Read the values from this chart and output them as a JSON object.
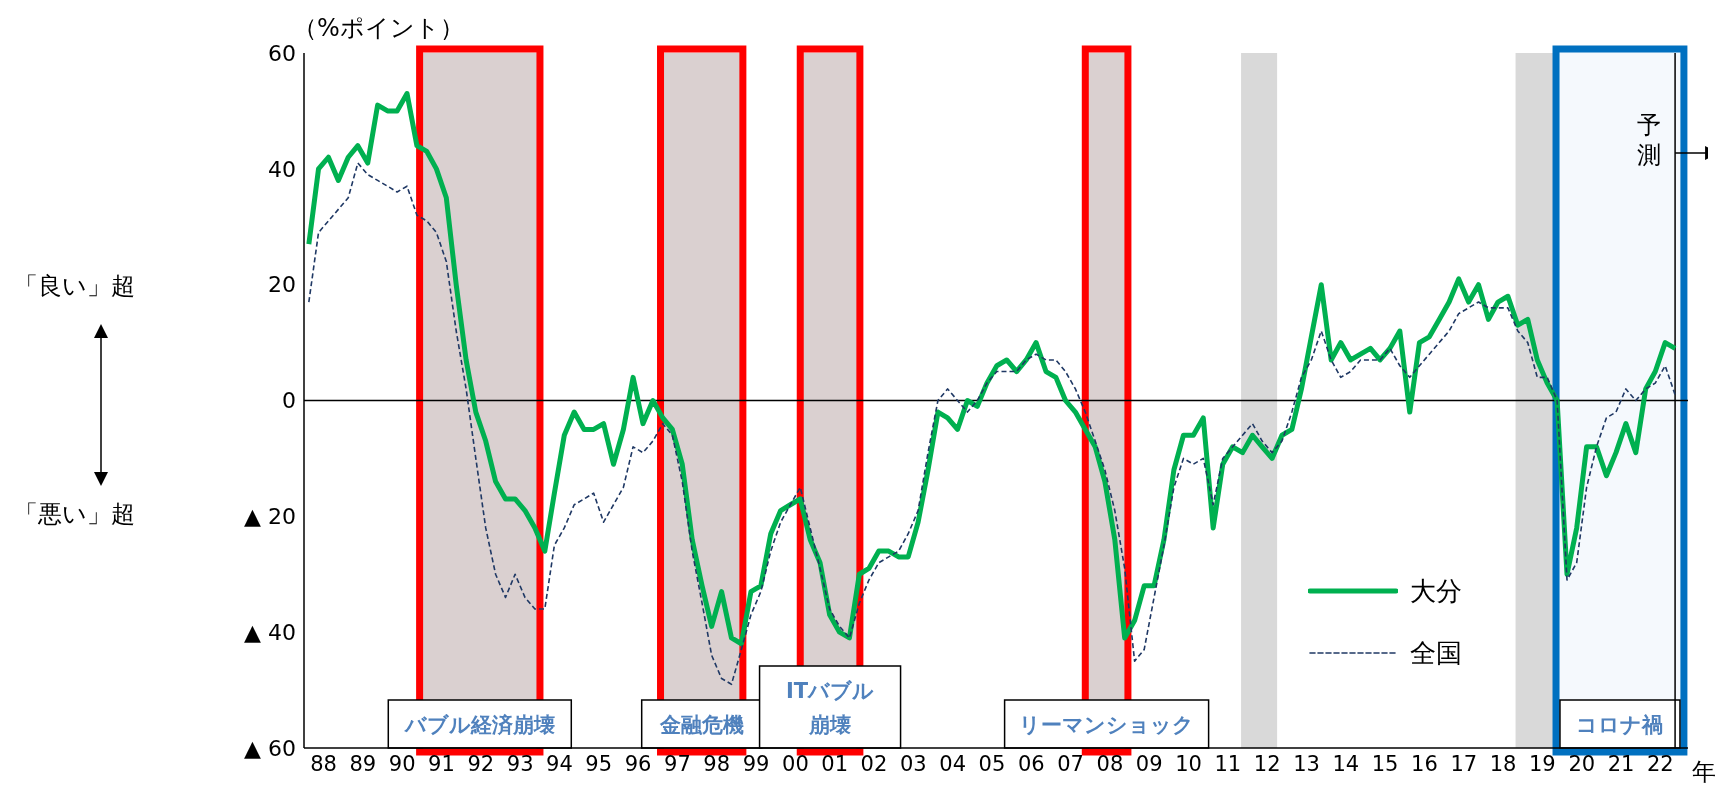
{
  "chart_data": {
    "type": "line",
    "ylabel": "（%ポイント）",
    "xlabel": "年",
    "annotations": [
      "「良い」超",
      "「悪い」超"
    ],
    "x": [
      "1988-02-15",
      "1988-05-15",
      "1988-08-15",
      "1988-11-15",
      "1989-02-15",
      "1989-05-15",
      "1989-08-15",
      "1989-11-15",
      "1990-02-15",
      "1990-05-15",
      "1990-08-15",
      "1990-11-15",
      "1991-02-15",
      "1991-05-15",
      "1991-08-15",
      "1991-11-15",
      "1992-02-15",
      "1992-05-15",
      "1992-08-15",
      "1992-11-15",
      "1993-02-15",
      "1993-05-15",
      "1993-08-15",
      "1993-11-15",
      "1994-02-15",
      "1994-05-15",
      "1994-08-15",
      "1994-11-15",
      "1995-02-15",
      "1995-05-15",
      "1995-08-15",
      "1995-11-15",
      "1996-02-15",
      "1996-05-15",
      "1996-08-15",
      "1996-11-15",
      "1997-02-15",
      "1997-05-15",
      "1997-08-15",
      "1997-11-15",
      "1998-02-15",
      "1998-05-15",
      "1998-08-15",
      "1998-11-15",
      "1999-02-15",
      "1999-05-15",
      "1999-08-15",
      "1999-11-15",
      "2000-02-15",
      "2000-05-15",
      "2000-08-15",
      "2000-11-15",
      "2001-02-15",
      "2001-05-15",
      "2001-08-15",
      "2001-11-15",
      "2002-02-15",
      "2002-05-15",
      "2002-08-15",
      "2002-11-15",
      "2003-02-15",
      "2003-05-15",
      "2003-08-15",
      "2003-11-15",
      "2004-02-15",
      "2004-05-15",
      "2004-08-15",
      "2004-11-15",
      "2005-02-15",
      "2005-05-15",
      "2005-08-15",
      "2005-11-15",
      "2006-02-15",
      "2006-05-15",
      "2006-08-15",
      "2006-11-15",
      "2007-02-15",
      "2007-05-15",
      "2007-08-15",
      "2007-11-15",
      "2008-02-15",
      "2008-05-15",
      "2008-08-15",
      "2008-11-15",
      "2009-02-15",
      "2009-05-15",
      "2009-08-15",
      "2009-11-15",
      "2010-02-15",
      "2010-05-15",
      "2010-08-15",
      "2010-11-15",
      "2011-02-15",
      "2011-05-15",
      "2011-08-15",
      "2011-11-15",
      "2012-02-15",
      "2012-05-15",
      "2012-08-15",
      "2012-11-15",
      "2013-02-15",
      "2013-05-15",
      "2013-08-15",
      "2013-11-15",
      "2014-02-15",
      "2014-05-15",
      "2014-08-15",
      "2014-11-15",
      "2015-02-15",
      "2015-05-15",
      "2015-08-15",
      "2015-11-15",
      "2016-02-15",
      "2016-05-15",
      "2016-08-15",
      "2016-11-15",
      "2017-02-15",
      "2017-05-15",
      "2017-08-15",
      "2017-11-15",
      "2018-02-15",
      "2018-05-15",
      "2018-08-15",
      "2018-11-15",
      "2019-02-15",
      "2019-05-15",
      "2019-08-15",
      "2019-11-15",
      "2020-02-15",
      "2020-05-15",
      "2020-08-15",
      "2020-11-15",
      "2021-02-15",
      "2021-05-15",
      "2021-08-15",
      "2021-11-15",
      "2022-02-15",
      "2022-05-15",
      "2022-08-15",
      "2022-11-15"
    ],
    "series": [
      {
        "name": "大分",
        "color": "#00b050",
        "line_style": "solid",
        "values": [
          27,
          40,
          42,
          38,
          42,
          44,
          41,
          51,
          50,
          50,
          53,
          44,
          43,
          40,
          35,
          20,
          7,
          -2,
          -7,
          -14,
          -17,
          -17,
          -19,
          -22,
          -26,
          -16,
          -6,
          -2,
          -5,
          -5,
          -4,
          -11,
          -5,
          4,
          -4,
          0,
          -3,
          -5,
          -11,
          -24,
          -32,
          -39,
          -33,
          -41,
          -42,
          -33,
          -32,
          -23,
          -19,
          -18,
          -17,
          -24,
          -28,
          -37,
          -40,
          -41,
          -30,
          -29,
          -26,
          -26,
          -27,
          -27,
          -21,
          -12,
          -2,
          -3,
          -5,
          0,
          -1,
          3,
          6,
          7,
          5,
          7,
          10,
          5,
          4,
          0,
          -2,
          -5,
          -8,
          -14,
          -24,
          -41,
          -38,
          -32,
          -32,
          -24,
          -12,
          -6,
          -6,
          -3,
          -22,
          -11,
          -8,
          -9,
          -6,
          -8,
          -10,
          -6,
          -5,
          2,
          11,
          20,
          7,
          10,
          7,
          8,
          9,
          7,
          9,
          12,
          -2,
          10,
          11,
          14,
          17,
          21,
          17,
          20,
          14,
          17,
          18,
          13,
          14,
          7,
          3,
          0,
          -30,
          -22,
          -8,
          -8,
          -13,
          -9,
          -4,
          -9,
          2,
          5,
          10,
          9
        ]
      },
      {
        "name": "全国",
        "color": "#1f3864",
        "line_style": "dashed",
        "values": [
          17,
          29,
          31,
          33,
          35,
          41,
          39,
          38,
          37,
          36,
          37,
          32,
          31,
          29,
          24,
          12,
          2,
          -10,
          -22,
          -30,
          -34,
          -30,
          -34,
          -36,
          -36,
          -25,
          -22,
          -18,
          -17,
          -16,
          -21,
          -18,
          -15,
          -8,
          -9,
          -7,
          -4,
          -6,
          -14,
          -26,
          -35,
          -44,
          -48,
          -49,
          -43,
          -37,
          -33,
          -26,
          -21,
          -18,
          -15,
          -22,
          -29,
          -36,
          -39,
          -41,
          -35,
          -31,
          -28,
          -27,
          -26,
          -23,
          -19,
          -9,
          0,
          2,
          0,
          -2,
          0,
          3,
          5,
          5,
          5,
          7,
          8,
          7,
          7,
          5,
          2,
          -2,
          -7,
          -12,
          -19,
          -29,
          -45,
          -43,
          -34,
          -25,
          -15,
          -10,
          -11,
          -10,
          -18,
          -10,
          -8,
          -6,
          -4,
          -7,
          -9,
          -7,
          -2,
          4,
          7,
          12,
          7,
          4,
          5,
          7,
          7,
          7,
          9,
          6,
          4,
          6,
          8,
          10,
          12,
          15,
          16,
          17,
          16,
          16,
          16,
          12,
          10,
          4,
          4,
          0,
          -31,
          -28,
          -15,
          -8,
          -3,
          -2,
          2,
          0,
          2,
          3,
          6,
          1
        ]
      }
    ],
    "xlim": [
      "1988-01-01",
      "2023-03-15"
    ],
    "xticks": [
      {
        "value": "1988-07-01",
        "label": "88"
      },
      {
        "value": "1989-07-01",
        "label": "89"
      },
      {
        "value": "1990-07-01",
        "label": "90"
      },
      {
        "value": "1991-07-01",
        "label": "91"
      },
      {
        "value": "1992-07-01",
        "label": "92"
      },
      {
        "value": "1993-07-01",
        "label": "93"
      },
      {
        "value": "1994-07-01",
        "label": "94"
      },
      {
        "value": "1995-07-01",
        "label": "95"
      },
      {
        "value": "1996-07-01",
        "label": "96"
      },
      {
        "value": "1997-07-01",
        "label": "97"
      },
      {
        "value": "1998-07-01",
        "label": "98"
      },
      {
        "value": "1999-07-01",
        "label": "99"
      },
      {
        "value": "2000-07-01",
        "label": "00"
      },
      {
        "value": "2001-07-01",
        "label": "01"
      },
      {
        "value": "2002-07-01",
        "label": "02"
      },
      {
        "value": "2003-07-01",
        "label": "03"
      },
      {
        "value": "2004-07-01",
        "label": "04"
      },
      {
        "value": "2005-07-01",
        "label": "05"
      },
      {
        "value": "2006-07-01",
        "label": "06"
      },
      {
        "value": "2007-07-01",
        "label": "07"
      },
      {
        "value": "2008-07-01",
        "label": "08"
      },
      {
        "value": "2009-07-01",
        "label": "09"
      },
      {
        "value": "2010-07-01",
        "label": "10"
      },
      {
        "value": "2011-07-01",
        "label": "11"
      },
      {
        "value": "2012-07-01",
        "label": "12"
      },
      {
        "value": "2013-07-01",
        "label": "13"
      },
      {
        "value": "2014-07-01",
        "label": "14"
      },
      {
        "value": "2015-07-01",
        "label": "15"
      },
      {
        "value": "2016-07-01",
        "label": "16"
      },
      {
        "value": "2017-07-01",
        "label": "17"
      },
      {
        "value": "2018-07-01",
        "label": "18"
      },
      {
        "value": "2019-07-01",
        "label": "19"
      },
      {
        "value": "2020-07-01",
        "label": "20"
      },
      {
        "value": "2021-07-01",
        "label": "21"
      },
      {
        "value": "2022-07-01",
        "label": "22"
      }
    ],
    "ylim": [
      -60,
      60
    ],
    "yticks": [
      60,
      40,
      20,
      0,
      {
        "value": -20,
        "label": "▲ 20"
      },
      {
        "value": -40,
        "label": "▲ 40"
      },
      {
        "value": -60,
        "label": "▲ 60"
      }
    ],
    "ref_lines": [
      {
        "axis": "y",
        "value": 0,
        "color": "#000000"
      },
      {
        "axis": "x",
        "value": "2022-11-15",
        "label": "予測",
        "color": "#000000"
      }
    ],
    "bands": [
      {
        "axis": "x",
        "from": "1990-12-10",
        "to": "1994-01-01",
        "color": "#d9d9d9"
      },
      {
        "axis": "x",
        "from": "1997-01-25",
        "to": "1999-03-01",
        "color": "#d9d9d9"
      },
      {
        "axis": "x",
        "from": "2000-08-15",
        "to": "2002-02-20",
        "color": "#d9d9d9"
      },
      {
        "axis": "x",
        "from": "2007-11-15",
        "to": "2008-12-15",
        "color": "#d9d9d9"
      },
      {
        "axis": "x",
        "from": "2011-11-01",
        "to": "2012-10-01",
        "color": "#d9d9d9"
      },
      {
        "axis": "x",
        "from": "2018-10-25",
        "to": "2019-11-05",
        "color": "#d9d9d9"
      },
      {
        "axis": "x",
        "from": "1990-12-10",
        "to": "1994-01-01",
        "label": "バブル経済崩壊",
        "color": "#ff0000"
      },
      {
        "axis": "x",
        "from": "1997-01-25",
        "to": "1999-03-01",
        "label": "金融危機",
        "color": "#ff0000"
      },
      {
        "axis": "x",
        "from": "2000-08-15",
        "to": "2002-02-20",
        "label": "ITバブル崩壊",
        "color": "#ff0000"
      },
      {
        "axis": "x",
        "from": "2007-11-15",
        "to": "2008-12-15",
        "label": "リーマンショック",
        "color": "#ff0000"
      },
      {
        "axis": "x",
        "from": "2019-11-05",
        "to": "2023-02-05",
        "label": "コロナ禍",
        "color": "#0070c0"
      }
    ],
    "legend": "bottom right",
    "marker": "none"
  }
}
